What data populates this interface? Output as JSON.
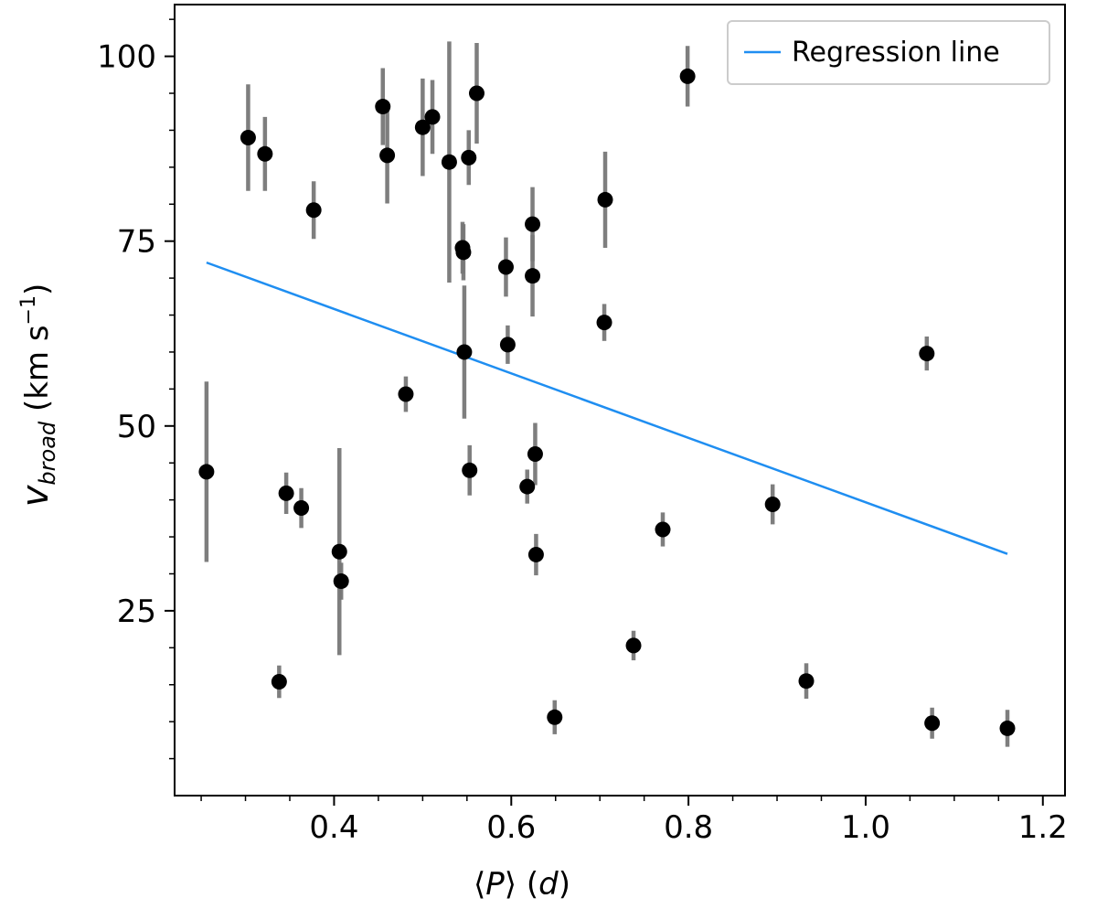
{
  "chart_data": {
    "type": "scatter",
    "title": "",
    "xlabel_parts": {
      "open": "⟨",
      "var": "P",
      "close": "⟩",
      "unit_open": " (",
      "unit_var": "d",
      "unit_close": ")"
    },
    "ylabel_parts": {
      "var": "v",
      "sub": "broad",
      "unit": " (km s",
      "sup": "−1",
      "close": ")"
    },
    "xlim": [
      0.22,
      1.225
    ],
    "ylim": [
      0,
      107
    ],
    "xticks": [
      0.4,
      0.6,
      0.8,
      1.0,
      1.2
    ],
    "xtick_labels": [
      "0.4",
      "0.6",
      "0.8",
      "1.0",
      "1.2"
    ],
    "xminor": [
      0.25,
      0.3,
      0.35,
      0.45,
      0.5,
      0.55,
      0.65,
      0.7,
      0.75,
      0.85,
      0.9,
      0.95,
      1.05,
      1.1,
      1.15
    ],
    "yticks": [
      25,
      50,
      75,
      100
    ],
    "ytick_labels": [
      "25",
      "50",
      "75",
      "100"
    ],
    "yminor": [
      5,
      10,
      15,
      20,
      30,
      35,
      40,
      45,
      55,
      60,
      65,
      70,
      80,
      85,
      90,
      95,
      105
    ],
    "legend": {
      "position": "upper right",
      "entries": [
        "Regression line"
      ]
    },
    "colors": {
      "points": "#000000",
      "errorbars": "#777777",
      "regression": "#1f8ef1"
    },
    "regression": {
      "x": [
        0.256,
        1.16
      ],
      "y": [
        72.1,
        32.7
      ]
    },
    "points": [
      {
        "x": 0.256,
        "y": 43.8,
        "err": 12.2
      },
      {
        "x": 0.303,
        "y": 89.0,
        "err": 7.2
      },
      {
        "x": 0.322,
        "y": 86.8,
        "err": 5.0
      },
      {
        "x": 0.338,
        "y": 15.4,
        "err": 2.2
      },
      {
        "x": 0.346,
        "y": 40.9,
        "err": 2.8
      },
      {
        "x": 0.363,
        "y": 38.9,
        "err": 2.7
      },
      {
        "x": 0.377,
        "y": 79.2,
        "err": 3.9
      },
      {
        "x": 0.406,
        "y": 33.0,
        "err": 14.0
      },
      {
        "x": 0.408,
        "y": 29.0,
        "err": 2.5
      },
      {
        "x": 0.455,
        "y": 93.2,
        "err": 5.2
      },
      {
        "x": 0.46,
        "y": 86.6,
        "err": 6.5
      },
      {
        "x": 0.481,
        "y": 54.3,
        "err": 2.4
      },
      {
        "x": 0.5,
        "y": 90.4,
        "err": 6.6
      },
      {
        "x": 0.511,
        "y": 91.8,
        "err": 5.0
      },
      {
        "x": 0.53,
        "y": 85.7,
        "err": 16.3
      },
      {
        "x": 0.545,
        "y": 74.1,
        "err": 3.5
      },
      {
        "x": 0.546,
        "y": 73.5,
        "err": 3.8
      },
      {
        "x": 0.547,
        "y": 60.0,
        "err": 9.0
      },
      {
        "x": 0.552,
        "y": 86.3,
        "err": 3.7
      },
      {
        "x": 0.553,
        "y": 44.0,
        "err": 3.4
      },
      {
        "x": 0.561,
        "y": 95.0,
        "err": 6.8
      },
      {
        "x": 0.594,
        "y": 71.5,
        "err": 4.0
      },
      {
        "x": 0.596,
        "y": 61.0,
        "err": 2.6
      },
      {
        "x": 0.618,
        "y": 41.8,
        "err": 2.3
      },
      {
        "x": 0.624,
        "y": 77.3,
        "err": 5.0
      },
      {
        "x": 0.624,
        "y": 70.3,
        "err": 5.5
      },
      {
        "x": 0.627,
        "y": 46.2,
        "err": 4.2
      },
      {
        "x": 0.628,
        "y": 32.6,
        "err": 2.8
      },
      {
        "x": 0.649,
        "y": 10.6,
        "err": 2.3
      },
      {
        "x": 0.705,
        "y": 64.0,
        "err": 2.5
      },
      {
        "x": 0.706,
        "y": 80.6,
        "err": 6.5
      },
      {
        "x": 0.738,
        "y": 20.3,
        "err": 2.0
      },
      {
        "x": 0.771,
        "y": 36.0,
        "err": 2.3
      },
      {
        "x": 0.799,
        "y": 97.3,
        "err": 4.1
      },
      {
        "x": 0.895,
        "y": 39.4,
        "err": 2.7
      },
      {
        "x": 0.933,
        "y": 15.5,
        "err": 2.4
      },
      {
        "x": 1.069,
        "y": 59.8,
        "err": 2.3
      },
      {
        "x": 1.075,
        "y": 9.8,
        "err": 2.1
      },
      {
        "x": 1.16,
        "y": 9.1,
        "err": 2.5
      }
    ]
  }
}
